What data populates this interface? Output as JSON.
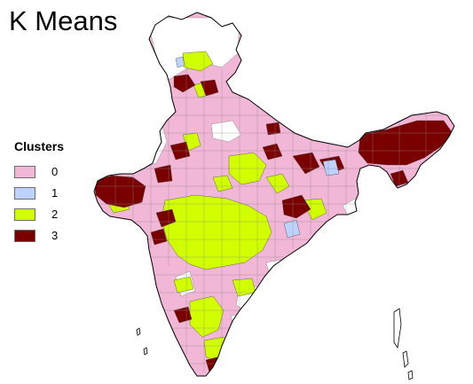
{
  "title": "K Means",
  "legend": {
    "title": "Clusters",
    "items": [
      {
        "label": "0",
        "color": "#f2b6d6"
      },
      {
        "label": "1",
        "color": "#bed2ff"
      },
      {
        "label": "2",
        "color": "#d1ff00"
      },
      {
        "label": "3",
        "color": "#7a0000"
      }
    ]
  },
  "map": {
    "region": "India",
    "unit": "districts",
    "boundary_color": "#000000",
    "no_data_color": "#ffffff"
  }
}
